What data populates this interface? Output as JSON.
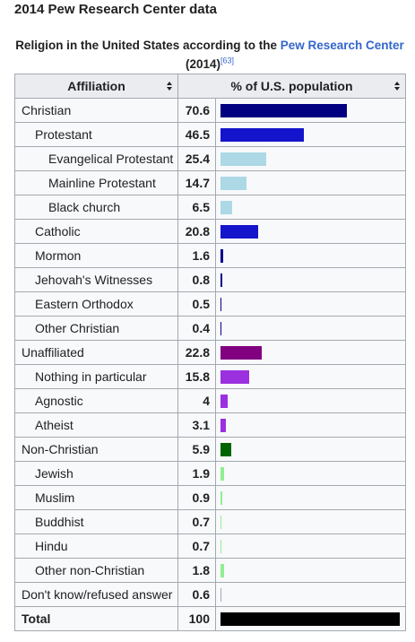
{
  "heading": "2014 Pew Research Center data",
  "caption": {
    "text": "Religion in the United States according to the ",
    "link": "Pew Research Center",
    "suffix": " (2014)",
    "ref": "[63]"
  },
  "table": {
    "headers": [
      "Affiliation",
      "% of U.S. population"
    ],
    "rows": [
      {
        "label": "Christian",
        "value": 70.6,
        "level": 0,
        "color": "#000080"
      },
      {
        "label": "Protestant",
        "value": 46.5,
        "level": 1,
        "color": "#1414cc"
      },
      {
        "label": "Evangelical Protestant",
        "value": 25.4,
        "level": 2,
        "color": "#add8e6"
      },
      {
        "label": "Mainline Protestant",
        "value": 14.7,
        "level": 2,
        "color": "#add8e6"
      },
      {
        "label": "Black church",
        "value": 6.5,
        "level": 2,
        "color": "#add8e6"
      },
      {
        "label": "Catholic",
        "value": 20.8,
        "level": 1,
        "color": "#1414cc"
      },
      {
        "label": "Mormon",
        "value": 1.6,
        "level": 1,
        "color": "#00008b"
      },
      {
        "label": "Jehovah's Witnesses",
        "value": 0.8,
        "level": 1,
        "color": "#00008b"
      },
      {
        "label": "Eastern Orthodox",
        "value": 0.5,
        "level": 1,
        "color": "#00008b"
      },
      {
        "label": "Other Christian",
        "value": 0.4,
        "level": 1,
        "color": "#00008b"
      },
      {
        "label": "Unaffiliated",
        "value": 22.8,
        "level": 0,
        "color": "#800080"
      },
      {
        "label": "Nothing in particular",
        "value": 15.8,
        "level": 1,
        "color": "#9b30e0"
      },
      {
        "label": "Agnostic",
        "value": 4.0,
        "level": 1,
        "color": "#9b30e0"
      },
      {
        "label": "Atheist",
        "value": 3.1,
        "level": 1,
        "color": "#9b30e0"
      },
      {
        "label": "Non-Christian",
        "value": 5.9,
        "level": 0,
        "color": "#006400"
      },
      {
        "label": "Jewish",
        "value": 1.9,
        "level": 1,
        "color": "#90ee90"
      },
      {
        "label": "Muslim",
        "value": 0.9,
        "level": 1,
        "color": "#90ee90"
      },
      {
        "label": "Buddhist",
        "value": 0.7,
        "level": 1,
        "color": "#90ee90"
      },
      {
        "label": "Hindu",
        "value": 0.7,
        "level": 1,
        "color": "#90ee90"
      },
      {
        "label": "Other non-Christian",
        "value": 1.8,
        "level": 1,
        "color": "#90ee90"
      },
      {
        "label": "Don't know/refused answer",
        "value": 0.6,
        "level": 0,
        "color": "#a2a9b1"
      },
      {
        "label": "Total",
        "value": 100,
        "level": 0,
        "color": "#000000",
        "bold": true
      }
    ]
  }
}
